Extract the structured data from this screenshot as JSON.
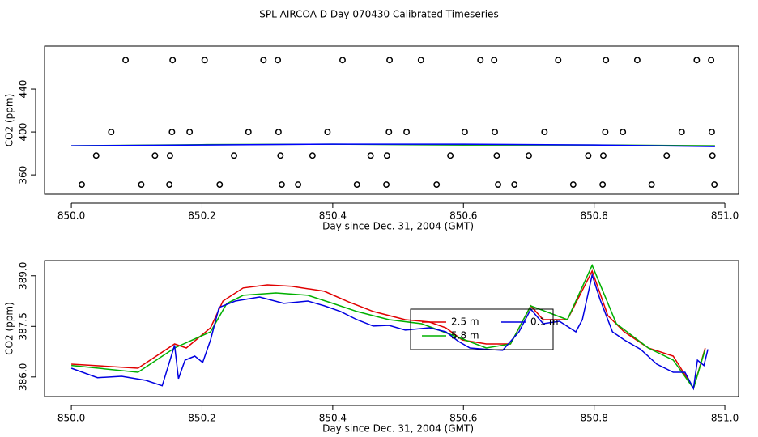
{
  "title": "SPL AIRCOA D  Day 070430  Calibrated Timeseries",
  "chart_data": [
    {
      "type": "scatter",
      "x_label": "Day since Dec. 31, 2004 (GMT)",
      "y_label": "CO2 (ppm)",
      "color": "#000000",
      "xlim": [
        849.959,
        851.021
      ],
      "ylim": [
        342,
        480
      ],
      "xticks": [
        {
          "value": 850,
          "label": "850.0"
        },
        850.2,
        850.4,
        850.6,
        850.8,
        {
          "value": 851,
          "label": "851.0"
        }
      ],
      "yticks": [
        360,
        400,
        440
      ],
      "x": [
        850.083,
        850.155,
        850.204,
        850.294,
        850.316,
        850.415,
        850.487,
        850.535,
        850.626,
        850.647,
        850.745,
        850.818,
        850.866,
        850.957,
        850.979,
        850.061,
        850.154,
        850.181,
        850.271,
        850.317,
        850.392,
        850.486,
        850.513,
        850.602,
        850.648,
        850.724,
        850.817,
        850.844,
        850.934,
        850.98,
        850.038,
        850.128,
        850.151,
        850.249,
        850.32,
        850.369,
        850.458,
        850.483,
        850.58,
        850.651,
        850.7,
        850.791,
        850.814,
        850.911,
        850.981,
        850.016,
        850.107,
        850.15,
        850.227,
        850.322,
        850.347,
        850.437,
        850.482,
        850.559,
        850.653,
        850.678,
        850.768,
        850.813,
        850.888,
        850.984
      ],
      "values": [
        467,
        467,
        467,
        467,
        467,
        467,
        467,
        467,
        467,
        467,
        467,
        467,
        467,
        467,
        467,
        400,
        400,
        400,
        400,
        400,
        400,
        400,
        400,
        400,
        400,
        400,
        400,
        400,
        400,
        400,
        378,
        378,
        378,
        378,
        378,
        378,
        378,
        378,
        378,
        378,
        378,
        378,
        378,
        378,
        378,
        351,
        351,
        351,
        351,
        351,
        351,
        351,
        351,
        351,
        351,
        351,
        351,
        351,
        351,
        351
      ],
      "lines": [
        {
          "color": "#00a000",
          "x": [
            850.0,
            850.2,
            850.4,
            850.6,
            850.8,
            850.985
          ],
          "values": [
            387.2,
            388.2,
            388.7,
            387.9,
            387.9,
            387.2
          ]
        },
        {
          "color": "#0000ff",
          "x": [
            850.0,
            850.2,
            850.4,
            850.6,
            850.8,
            850.985
          ],
          "values": [
            387.2,
            387.9,
            388.7,
            388.7,
            387.9,
            386.4
          ]
        }
      ]
    },
    {
      "type": "line",
      "x_label": "Day since Dec. 31, 2004 (GMT)",
      "y_label": "CO2 (ppm)",
      "xlim": [
        849.959,
        851.021
      ],
      "ylim": [
        385.42,
        389.45
      ],
      "xticks": [
        {
          "value": 850,
          "label": "850.0"
        },
        850.2,
        850.4,
        850.6,
        850.8,
        {
          "value": 851,
          "label": "851.0"
        }
      ],
      "yticks": [
        {
          "value": 386,
          "label": "386.0"
        },
        387.5,
        {
          "value": 389,
          "label": "389.0"
        }
      ],
      "legend": "center",
      "series": [
        {
          "name": "2.5 m",
          "color": "#e00000",
          "x": [
            850.0,
            850.102,
            850.158,
            850.176,
            850.213,
            850.232,
            850.263,
            850.3,
            850.337,
            850.387,
            850.424,
            850.462,
            850.511,
            850.548,
            850.573,
            850.598,
            850.635,
            850.672,
            850.703,
            850.722,
            850.759,
            850.797,
            850.821,
            850.846,
            850.883,
            850.921,
            850.952,
            850.97
          ],
          "values": [
            386.38,
            386.26,
            386.98,
            386.86,
            387.46,
            388.25,
            388.64,
            388.73,
            388.69,
            388.54,
            388.23,
            387.94,
            387.7,
            387.63,
            387.46,
            387.1,
            386.98,
            386.98,
            388.11,
            387.7,
            387.7,
            389.14,
            387.82,
            387.34,
            386.86,
            386.62,
            385.66,
            386.86
          ]
        },
        {
          "name": "5.8 m",
          "color": "#00b000",
          "x": [
            850.0,
            850.102,
            850.158,
            850.213,
            850.238,
            850.263,
            850.313,
            850.362,
            850.4,
            850.437,
            850.486,
            850.536,
            850.586,
            850.635,
            850.672,
            850.703,
            850.759,
            850.797,
            850.834,
            850.883,
            850.921,
            850.952,
            850.97
          ],
          "values": [
            386.34,
            386.14,
            386.86,
            387.34,
            388.18,
            388.42,
            388.49,
            388.42,
            388.18,
            387.94,
            387.7,
            387.58,
            387.22,
            386.86,
            386.98,
            388.11,
            387.7,
            389.31,
            387.58,
            386.86,
            386.5,
            385.66,
            386.82
          ]
        },
        {
          "name": "0.1 m",
          "color": "#0000e0",
          "x": [
            850.0,
            850.04,
            850.077,
            850.114,
            850.139,
            850.158,
            850.164,
            850.174,
            850.189,
            850.201,
            850.213,
            850.226,
            850.251,
            850.288,
            850.325,
            850.362,
            850.387,
            850.412,
            850.437,
            850.462,
            850.486,
            850.511,
            850.548,
            850.573,
            850.592,
            850.61,
            850.635,
            850.66,
            850.685,
            850.703,
            850.722,
            850.747,
            850.772,
            850.782,
            850.797,
            850.809,
            850.828,
            850.846,
            850.871,
            850.896,
            850.921,
            850.939,
            850.952,
            850.958,
            850.968,
            850.974
          ],
          "values": [
            386.26,
            385.98,
            386.02,
            385.9,
            385.74,
            386.94,
            385.95,
            386.5,
            386.62,
            386.43,
            387.1,
            388.06,
            388.25,
            388.37,
            388.18,
            388.25,
            388.11,
            387.94,
            387.7,
            387.51,
            387.53,
            387.39,
            387.46,
            387.34,
            387.06,
            386.86,
            386.82,
            386.79,
            387.34,
            388.01,
            387.58,
            387.65,
            387.34,
            387.7,
            389.02,
            388.3,
            387.34,
            387.1,
            386.82,
            386.38,
            386.14,
            386.14,
            385.66,
            386.5,
            386.34,
            386.82
          ]
        }
      ]
    }
  ]
}
